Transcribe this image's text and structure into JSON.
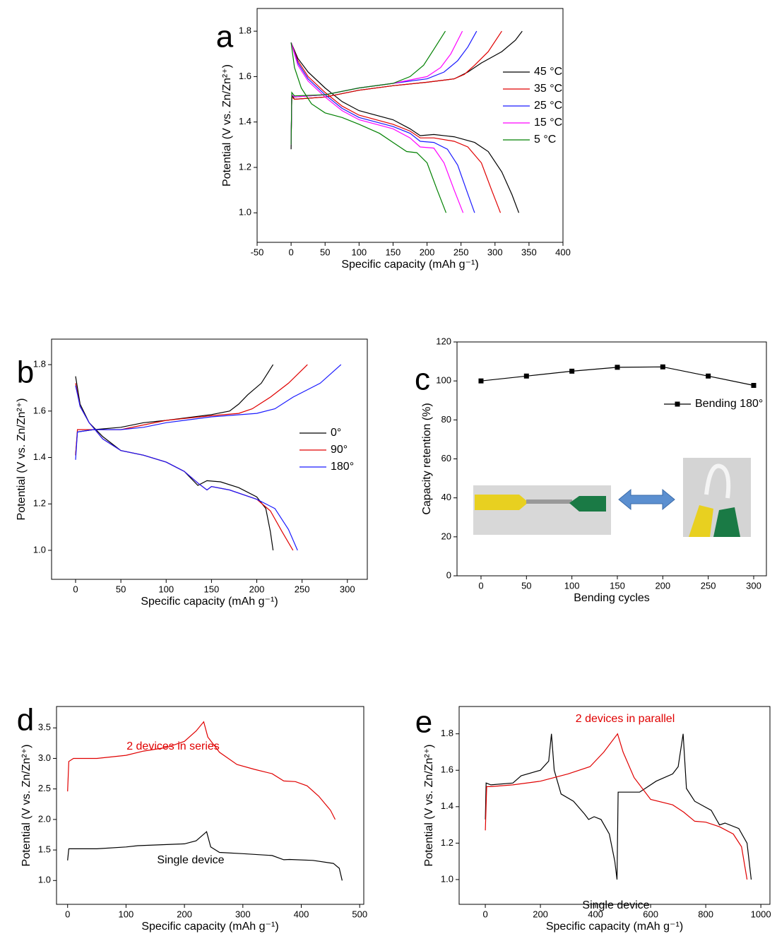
{
  "chart_data": [
    {
      "type": "line",
      "panel_label": "a",
      "xlabel": "Specific capacity (mAh g⁻¹)",
      "ylabel": "Potential (V vs. Zn/Zn²⁺)",
      "xlim": [
        -50,
        400
      ],
      "xticks": [
        -50,
        0,
        50,
        100,
        150,
        200,
        250,
        300,
        350,
        400
      ],
      "ylim": [
        0.87,
        1.9
      ],
      "yticks": [
        {
          "value": 1,
          "label": "1.0"
        },
        1.2,
        1.4,
        1.6,
        1.8
      ],
      "legend": "upper right",
      "series": [
        {
          "name": "45 °C",
          "color": "#000000",
          "x": [
            0,
            10,
            25,
            50,
            75,
            100,
            150,
            175,
            190,
            210,
            240,
            270,
            290,
            310,
            325,
            335,
            null,
            0,
            1,
            5,
            50,
            100,
            150,
            200,
            240,
            260,
            280,
            310,
            330,
            340
          ],
          "values": [
            1.75,
            1.68,
            1.62,
            1.55,
            1.49,
            1.45,
            1.41,
            1.37,
            1.34,
            1.345,
            1.335,
            1.31,
            1.27,
            1.18,
            1.08,
            1.0,
            null,
            1.28,
            1.52,
            1.5,
            1.51,
            1.54,
            1.56,
            1.575,
            1.59,
            1.62,
            1.66,
            1.71,
            1.76,
            1.8
          ]
        },
        {
          "name": "35 °C",
          "color": "#e00000",
          "x": [
            0,
            10,
            25,
            50,
            75,
            100,
            150,
            175,
            190,
            210,
            240,
            260,
            280,
            295,
            308,
            null,
            0,
            1,
            5,
            50,
            100,
            150,
            200,
            240,
            255,
            270,
            290,
            310
          ],
          "values": [
            1.75,
            1.67,
            1.6,
            1.53,
            1.47,
            1.43,
            1.39,
            1.36,
            1.33,
            1.33,
            1.315,
            1.29,
            1.22,
            1.1,
            1.0,
            null,
            1.3,
            1.51,
            1.5,
            1.51,
            1.54,
            1.56,
            1.575,
            1.59,
            1.61,
            1.65,
            1.71,
            1.8
          ]
        },
        {
          "name": "25 °C",
          "color": "#1a1aff",
          "x": [
            0,
            10,
            25,
            50,
            75,
            100,
            150,
            175,
            190,
            210,
            230,
            245,
            258,
            270,
            null,
            0,
            1,
            5,
            50,
            100,
            150,
            200,
            225,
            245,
            260,
            273
          ],
          "values": [
            1.75,
            1.66,
            1.59,
            1.52,
            1.46,
            1.42,
            1.38,
            1.35,
            1.315,
            1.31,
            1.28,
            1.21,
            1.1,
            1.0,
            null,
            1.3,
            1.52,
            1.51,
            1.52,
            1.55,
            1.57,
            1.59,
            1.62,
            1.67,
            1.73,
            1.8
          ]
        },
        {
          "name": "15 °C",
          "color": "#ff00ff",
          "x": [
            0,
            10,
            25,
            50,
            75,
            100,
            150,
            175,
            190,
            210,
            225,
            240,
            253,
            null,
            0,
            1,
            5,
            50,
            100,
            150,
            200,
            220,
            235,
            252
          ],
          "values": [
            1.75,
            1.65,
            1.58,
            1.51,
            1.45,
            1.41,
            1.37,
            1.33,
            1.29,
            1.285,
            1.22,
            1.1,
            1.0,
            null,
            1.3,
            1.52,
            1.51,
            1.52,
            1.55,
            1.57,
            1.6,
            1.64,
            1.7,
            1.8
          ]
        },
        {
          "name": "5 °C",
          "color": "#008000",
          "x": [
            0,
            5,
            15,
            30,
            50,
            75,
            100,
            130,
            150,
            170,
            185,
            200,
            215,
            228,
            null,
            0,
            1,
            5,
            50,
            100,
            150,
            175,
            195,
            210,
            227
          ],
          "values": [
            1.75,
            1.64,
            1.55,
            1.48,
            1.44,
            1.42,
            1.39,
            1.35,
            1.31,
            1.27,
            1.265,
            1.22,
            1.1,
            1.0,
            null,
            1.3,
            1.53,
            1.515,
            1.52,
            1.55,
            1.57,
            1.6,
            1.65,
            1.72,
            1.8
          ]
        }
      ]
    },
    {
      "type": "line",
      "panel_label": "b",
      "xlabel": "Specific capacity (mAh g⁻¹)",
      "ylabel": "Potential (V vs. Zn/Zn²⁺)",
      "xlim": [
        -26.5,
        322
      ],
      "xticks": [
        0,
        50,
        100,
        150,
        200,
        250,
        300
      ],
      "ylim": [
        0.875,
        1.91
      ],
      "yticks": [
        {
          "value": 1,
          "label": "1.0"
        },
        1.2,
        1.4,
        1.6,
        1.8
      ],
      "legend": "center right",
      "series": [
        {
          "name": "0°",
          "color": "#000000",
          "x": [
            0,
            5,
            15,
            30,
            50,
            75,
            100,
            120,
            135,
            145,
            160,
            180,
            200,
            210,
            215,
            218,
            null,
            0,
            2,
            20,
            50,
            75,
            100,
            150,
            170,
            180,
            190,
            205,
            218
          ],
          "values": [
            1.75,
            1.63,
            1.55,
            1.49,
            1.43,
            1.41,
            1.38,
            1.34,
            1.28,
            1.3,
            1.295,
            1.27,
            1.23,
            1.18,
            1.08,
            1.0,
            null,
            1.41,
            1.51,
            1.52,
            1.53,
            1.55,
            1.56,
            1.585,
            1.6,
            1.63,
            1.67,
            1.72,
            1.8
          ]
        },
        {
          "name": "90°",
          "color": "#e00000",
          "x": [
            0,
            5,
            15,
            30,
            50,
            75,
            100,
            120,
            135,
            145,
            150,
            170,
            200,
            215,
            228,
            240,
            null,
            0,
            2,
            20,
            50,
            75,
            100,
            150,
            180,
            195,
            215,
            235,
            256
          ],
          "values": [
            1.72,
            1.62,
            1.55,
            1.48,
            1.43,
            1.41,
            1.38,
            1.34,
            1.29,
            1.26,
            1.275,
            1.26,
            1.22,
            1.17,
            1.08,
            1.0,
            null,
            1.41,
            1.52,
            1.52,
            1.52,
            1.54,
            1.56,
            1.58,
            1.59,
            1.61,
            1.66,
            1.72,
            1.8
          ]
        },
        {
          "name": "180°",
          "color": "#1a1aff",
          "x": [
            0,
            5,
            15,
            30,
            50,
            75,
            100,
            120,
            135,
            145,
            150,
            170,
            200,
            220,
            235,
            245,
            null,
            0,
            2,
            20,
            50,
            75,
            100,
            150,
            200,
            220,
            240,
            270,
            293
          ],
          "values": [
            1.71,
            1.62,
            1.55,
            1.48,
            1.43,
            1.41,
            1.38,
            1.34,
            1.29,
            1.26,
            1.275,
            1.26,
            1.22,
            1.18,
            1.09,
            1.0,
            null,
            1.39,
            1.51,
            1.52,
            1.52,
            1.53,
            1.55,
            1.575,
            1.59,
            1.61,
            1.66,
            1.72,
            1.8
          ]
        }
      ]
    },
    {
      "type": "line",
      "marker": "square",
      "panel_label": "c",
      "xlabel": "Bending cycles",
      "ylabel": "Capacity retention (%)",
      "xlim": [
        -26.4,
        314
      ],
      "xticks": [
        0,
        50,
        100,
        150,
        200,
        250,
        300
      ],
      "ylim": [
        0,
        120
      ],
      "yticks": [
        0,
        20,
        40,
        60,
        80,
        100,
        120
      ],
      "legend": "upper right",
      "series": [
        {
          "name": "Bending 180°",
          "color": "#000000",
          "x": [
            0,
            50,
            100,
            150,
            200,
            250,
            300
          ],
          "values": [
            100,
            102.5,
            105,
            107,
            107.2,
            102.5,
            97.7
          ]
        }
      ]
    },
    {
      "type": "line",
      "panel_label": "d",
      "xlabel": "Specific capacity (mAh g⁻¹)",
      "ylabel": "Potential (V vs. Zn/Zn²⁺)",
      "xlim": [
        -19,
        507
      ],
      "xticks": [
        0,
        100,
        200,
        300,
        400,
        500
      ],
      "ylim": [
        0.61,
        3.85
      ],
      "yticks": [
        {
          "value": 1,
          "label": "1.0"
        },
        1.5,
        {
          "value": 2,
          "label": "2.0"
        },
        2.5,
        {
          "value": 3,
          "label": "3.0"
        },
        3.5
      ],
      "annotations": [
        {
          "text": "2 devices in series",
          "color": "#e00000"
        },
        {
          "text": "Single device",
          "color": "#000000"
        }
      ],
      "series": [
        {
          "color": "#e00000",
          "x": [
            0,
            2,
            10,
            50,
            100,
            130,
            170,
            200,
            220,
            233,
            240,
            260,
            290,
            320,
            350,
            370,
            390,
            410,
            430,
            450,
            458
          ],
          "values": [
            2.46,
            2.95,
            3.0,
            3.0,
            3.05,
            3.12,
            3.18,
            3.28,
            3.45,
            3.6,
            3.35,
            3.1,
            2.9,
            2.82,
            2.75,
            2.63,
            2.62,
            2.55,
            2.38,
            2.15,
            2.0
          ]
        },
        {
          "color": "#000000",
          "x": [
            0,
            2,
            50,
            100,
            120,
            200,
            220,
            238,
            245,
            260,
            300,
            350,
            370,
            380,
            420,
            455,
            465,
            470
          ],
          "values": [
            1.33,
            1.52,
            1.52,
            1.55,
            1.57,
            1.6,
            1.65,
            1.8,
            1.55,
            1.46,
            1.44,
            1.41,
            1.34,
            1.345,
            1.33,
            1.28,
            1.2,
            1.0
          ]
        }
      ]
    },
    {
      "type": "line",
      "panel_label": "e",
      "xlabel": "Specific capacity (mAh g⁻¹)",
      "ylabel": "Potential (V vs. Zn/Zn²⁺)",
      "xlim": [
        -95,
        1033
      ],
      "xticks": [
        0,
        200,
        400,
        600,
        800,
        1000
      ],
      "ylim": [
        0.864,
        1.95
      ],
      "yticks": [
        {
          "value": 1,
          "label": "1.0"
        },
        1.2,
        1.4,
        1.6,
        1.8
      ],
      "annotations": [
        {
          "text": "2 devices in parallel",
          "color": "#e00000"
        },
        {
          "text": "Single device",
          "color": "#000000"
        }
      ],
      "series": [
        {
          "color": "#000000",
          "x": [
            0,
            3,
            20,
            100,
            130,
            200,
            230,
            240,
            250,
            275,
            320,
            360,
            375,
            395,
            420,
            450,
            470,
            478,
            482,
            560,
            620,
            680,
            700,
            718,
            730,
            760,
            820,
            850,
            870,
            920,
            950,
            965
          ],
          "values": [
            1.33,
            1.53,
            1.52,
            1.53,
            1.57,
            1.6,
            1.65,
            1.8,
            1.6,
            1.47,
            1.43,
            1.36,
            1.33,
            1.345,
            1.33,
            1.25,
            1.1,
            1.0,
            1.48,
            1.48,
            1.54,
            1.58,
            1.62,
            1.8,
            1.5,
            1.43,
            1.38,
            1.3,
            1.31,
            1.28,
            1.2,
            1.0
          ]
        },
        {
          "color": "#e00000",
          "x": [
            0,
            5,
            20,
            100,
            200,
            300,
            380,
            430,
            480,
            500,
            540,
            600,
            680,
            720,
            760,
            800,
            850,
            900,
            930,
            950
          ],
          "values": [
            1.27,
            1.51,
            1.51,
            1.52,
            1.54,
            1.58,
            1.62,
            1.7,
            1.8,
            1.7,
            1.56,
            1.44,
            1.41,
            1.37,
            1.32,
            1.315,
            1.29,
            1.25,
            1.18,
            1.0
          ]
        }
      ]
    }
  ]
}
